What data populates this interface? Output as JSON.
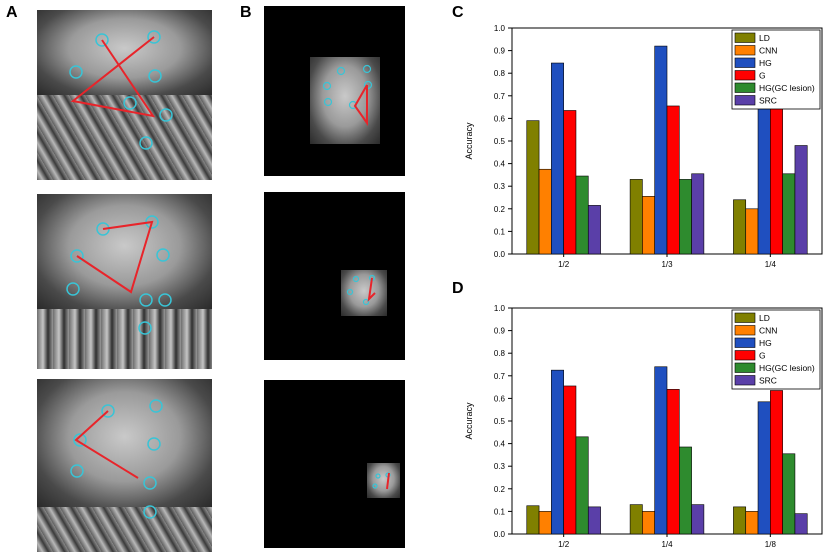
{
  "panels": {
    "a": "A",
    "b": "B",
    "c": "C",
    "d": "D"
  },
  "colors": {
    "LD": "#808000",
    "CNN": "#ff8000",
    "HG": "#1f4fbf",
    "G": "#ff0000",
    "HG(GC lesion)": "#2e8b2e",
    "SRC": "#5a3fa8",
    "marker": "#39c4d6",
    "line": "#e8242a"
  },
  "chart_data": [
    {
      "type": "bar",
      "panel": "C",
      "categories": [
        "1/2",
        "1/3",
        "1/4"
      ],
      "series": [
        {
          "name": "LD",
          "values": [
            0.59,
            0.33,
            0.24
          ]
        },
        {
          "name": "CNN",
          "values": [
            0.375,
            0.255,
            0.2
          ]
        },
        {
          "name": "HG",
          "values": [
            0.845,
            0.92,
            0.945
          ]
        },
        {
          "name": "G",
          "values": [
            0.635,
            0.655,
            0.685
          ]
        },
        {
          "name": "HG(GC lesion)",
          "values": [
            0.345,
            0.33,
            0.355
          ]
        },
        {
          "name": "SRC",
          "values": [
            0.215,
            0.355,
            0.48
          ]
        }
      ],
      "ylabel": "Accuracy",
      "xlabel": "",
      "ylim": [
        0,
        1.0
      ],
      "yticks": [
        "0.0",
        "0.1",
        "0.2",
        "0.3",
        "0.4",
        "0.5",
        "0.6",
        "0.7",
        "0.8",
        "0.9",
        "1.0"
      ],
      "legend": "top-right"
    },
    {
      "type": "bar",
      "panel": "D",
      "categories": [
        "1/2",
        "1/4",
        "1/8"
      ],
      "series": [
        {
          "name": "LD",
          "values": [
            0.125,
            0.13,
            0.12
          ]
        },
        {
          "name": "CNN",
          "values": [
            0.1,
            0.1,
            0.1
          ]
        },
        {
          "name": "HG",
          "values": [
            0.725,
            0.74,
            0.585
          ]
        },
        {
          "name": "G",
          "values": [
            0.655,
            0.64,
            0.635
          ]
        },
        {
          "name": "HG(GC lesion)",
          "values": [
            0.43,
            0.385,
            0.355
          ]
        },
        {
          "name": "SRC",
          "values": [
            0.12,
            0.13,
            0.09
          ]
        }
      ],
      "ylabel": "Accuracy",
      "xlabel": "",
      "ylim": [
        0,
        1.0
      ],
      "yticks": [
        "0.0",
        "0.1",
        "0.2",
        "0.3",
        "0.4",
        "0.5",
        "0.6",
        "0.7",
        "0.8",
        "0.9",
        "1.0"
      ],
      "legend": "top-right"
    }
  ]
}
